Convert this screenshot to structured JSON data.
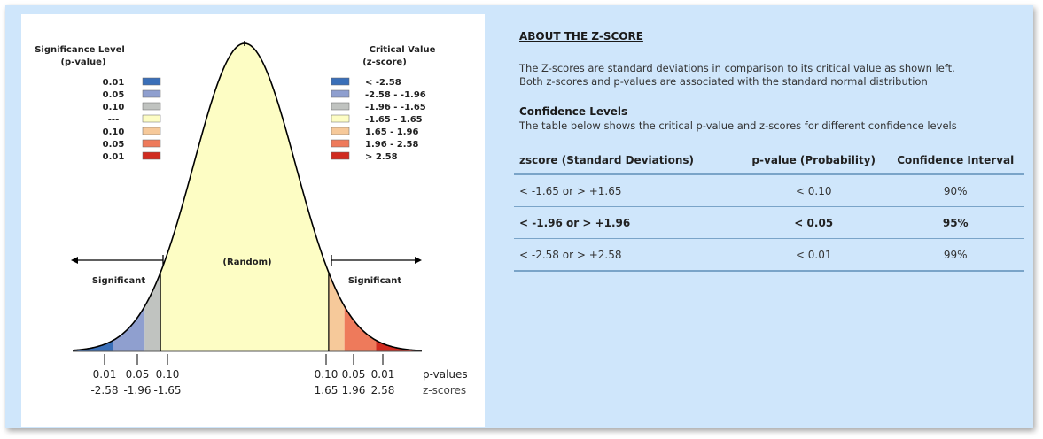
{
  "figure": {
    "significance_header": [
      "Significance Level",
      "(p-value)"
    ],
    "critical_header": [
      "Critical Value",
      "(z-score)"
    ],
    "legend": [
      {
        "p": "0.01",
        "z": "< -2.58",
        "color": "#3a6fb8"
      },
      {
        "p": "0.05",
        "z": "-2.58 - -1.96",
        "color": "#8f9fcf"
      },
      {
        "p": "0.10",
        "z": "-1.96 - -1.65",
        "color": "#c0c3c0"
      },
      {
        "p": "---",
        "z": "-1.65 - 1.65",
        "color": "#fdfdc4"
      },
      {
        "p": "0.10",
        "z": "1.65 - 1.96",
        "color": "#f6c99a"
      },
      {
        "p": "0.05",
        "z": "1.96 - 2.58",
        "color": "#ee7a5b"
      },
      {
        "p": "0.01",
        "z": "> 2.58",
        "color": "#d02b20"
      }
    ],
    "random_label": "(Random)",
    "significant_left": "Significant",
    "significant_right": "Significant",
    "axis_left": [
      {
        "p": "0.01",
        "z": "-2.58"
      },
      {
        "p": "0.05",
        "z": "-1.96"
      },
      {
        "p": "0.10",
        "z": "-1.65"
      }
    ],
    "axis_right": [
      {
        "p": "0.10",
        "z": "1.65"
      },
      {
        "p": "0.05",
        "z": "1.96"
      },
      {
        "p": "0.01",
        "z": "2.58"
      }
    ],
    "pvalues_label": "p-values",
    "zscores_label": "z-scores"
  },
  "info": {
    "about_title": "ABOUT THE Z-SCORE",
    "about_line1": "The Z-scores are standard deviations in comparison to its critical value as shown left.",
    "about_line2": "Both z-scores and p-values are associated with the standard normal distribution",
    "conf_title": "Confidence Levels",
    "conf_text": "The table below shows the critical p-value and z-scores for different confidence levels",
    "table": {
      "headers": [
        "zscore (Standard Deviations)",
        "p-value (Probability)",
        "Confidence Interval"
      ],
      "rows": [
        [
          "< -1.65 or > +1.65",
          "< 0.10",
          "90%"
        ],
        [
          "< -1.96 or > +1.96",
          "< 0.05",
          "95%"
        ],
        [
          "< -2.58 or > +2.58",
          "< 0.01",
          "99%"
        ]
      ]
    }
  }
}
